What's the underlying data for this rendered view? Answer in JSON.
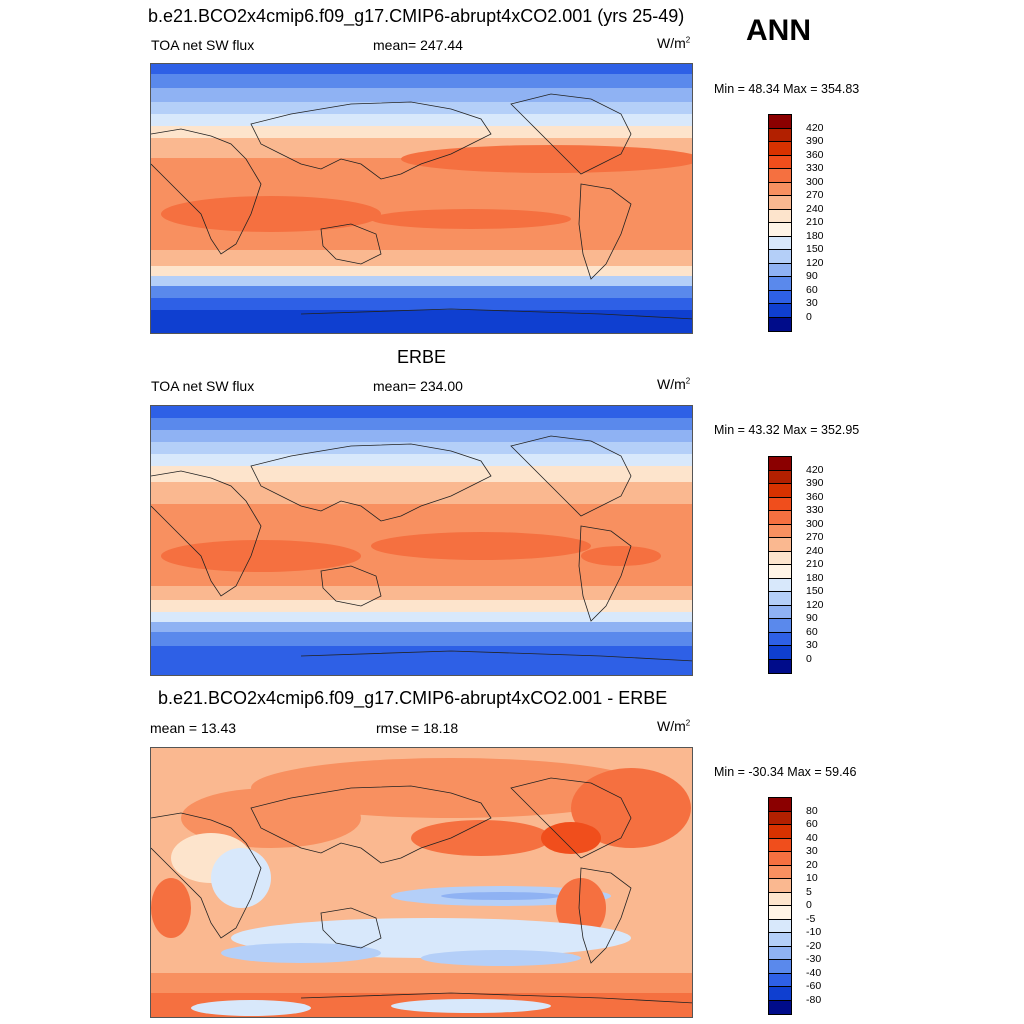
{
  "season": "ANN",
  "panels": [
    {
      "title": "b.e21.BCO2x4cmip6.f09_g17.CMIP6-abrupt4xCO2.001 (yrs 25-49)",
      "variable": "TOA net SW flux",
      "mean": "mean= 247.44",
      "units": "W/m",
      "units_sup": "2",
      "minmax": "Min =  48.34 Max = 354.83"
    },
    {
      "title": "ERBE",
      "variable": "TOA net SW flux",
      "mean": "mean= 234.00",
      "units": "W/m",
      "units_sup": "2",
      "minmax": "Min =  43.32 Max = 352.95"
    },
    {
      "title": "b.e21.BCO2x4cmip6.f09_g17.CMIP6-abrupt4xCO2.001 - ERBE",
      "variable": "mean =  13.43",
      "mean": "rmse =  18.18",
      "units": "W/m",
      "units_sup": "2",
      "minmax": "Min = -30.34 Max =  59.46"
    }
  ],
  "colorbars": {
    "absolute": {
      "labels": [
        "420",
        "390",
        "360",
        "330",
        "300",
        "270",
        "240",
        "210",
        "180",
        "150",
        "120",
        "90",
        "60",
        "30",
        "0"
      ],
      "colors": [
        "#8b0000",
        "#b22000",
        "#d83200",
        "#f04e1c",
        "#f57040",
        "#f89060",
        "#fab890",
        "#fde4cc",
        "#fff4e6",
        "#d8e8fb",
        "#b4cff8",
        "#8fb2f3",
        "#5a89ec",
        "#2e60e6",
        "#0f3fd0",
        "#000c8a"
      ]
    },
    "difference": {
      "labels": [
        "80",
        "60",
        "40",
        "30",
        "20",
        "10",
        "5",
        "0",
        "-5",
        "-10",
        "-20",
        "-30",
        "-40",
        "-60",
        "-80"
      ],
      "colors": [
        "#8b0000",
        "#b22000",
        "#d83200",
        "#f04e1c",
        "#f57040",
        "#f89060",
        "#fab890",
        "#fde4cc",
        "#fff4e6",
        "#d8e8fb",
        "#b4cff8",
        "#8fb2f3",
        "#5a89ec",
        "#2e60e6",
        "#0f3fd0",
        "#000c8a"
      ]
    }
  }
}
